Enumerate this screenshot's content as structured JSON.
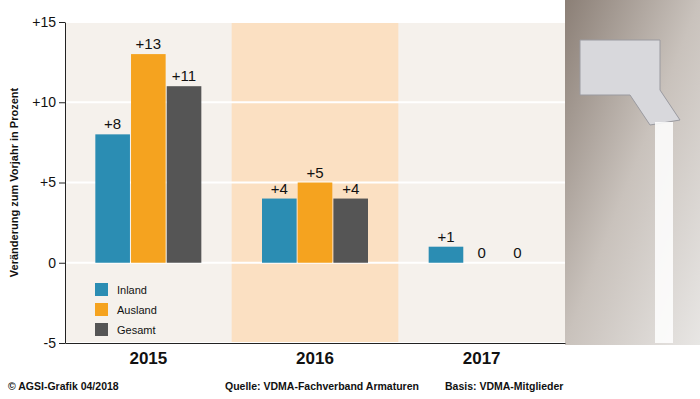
{
  "chart_data": {
    "type": "bar",
    "y_label": "Veränderung zum Vorjahr in Prozent",
    "categories": [
      "2015",
      "2016",
      "2017"
    ],
    "series": [
      {
        "name": "Inland",
        "color": "#2b8db3",
        "values": [
          8,
          4,
          1
        ],
        "value_labels": [
          "+8",
          "+4",
          "+1"
        ]
      },
      {
        "name": "Ausland",
        "color": "#f5a31f",
        "values": [
          13,
          5,
          0
        ],
        "value_labels": [
          "+13",
          "+5",
          "0"
        ]
      },
      {
        "name": "Gesamt",
        "color": "#555555",
        "values": [
          11,
          4,
          0
        ],
        "value_labels": [
          "+11",
          "+4",
          "0"
        ]
      }
    ],
    "ylim": [
      -5,
      15
    ],
    "yticks": [
      -5,
      0,
      {
        "value": 5,
        "label": "+5"
      },
      {
        "value": 10,
        "label": "+10"
      },
      {
        "value": 15,
        "label": "+15"
      }
    ],
    "grid": true,
    "legend": "lower left",
    "data_labels": true,
    "annotations": [
      "© AGSI-Grafik 04/2018",
      "Quelle: VDMA-Fachverband Armaturen",
      "Basis: VDMA-Mitglieder"
    ]
  }
}
